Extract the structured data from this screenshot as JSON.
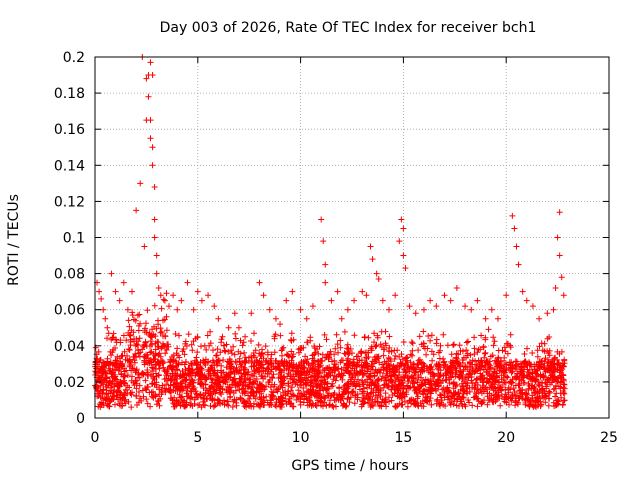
{
  "chart_data": {
    "type": "scatter",
    "title": "Day 003 of 2026, Rate Of TEC Index for receiver bch1",
    "xlabel": "GPS time / hours",
    "ylabel": "ROTI / TECUs",
    "xlim": [
      0,
      25
    ],
    "ylim": [
      0,
      0.2
    ],
    "x_ticks": [
      "0",
      "5",
      "10",
      "15",
      "20",
      "25"
    ],
    "y_ticks": [
      "0",
      "0.02",
      "0.04",
      "0.06",
      "0.08",
      "0.1",
      "0.12",
      "0.14",
      "0.16",
      "0.18",
      "0.2"
    ],
    "grid": true,
    "marker": "+",
    "color": "#ff0000",
    "series": [
      {
        "x": [
          0.1,
          0.2,
          0.3,
          0.4,
          0.5,
          0.6,
          0.8,
          1.0,
          1.2,
          1.4,
          1.6,
          1.8,
          2.0,
          2.2,
          2.3,
          2.4,
          2.5,
          2.5,
          2.6,
          2.6,
          2.7,
          2.7,
          2.7,
          2.8,
          2.8,
          2.8,
          2.9,
          2.9,
          2.9,
          3.0,
          3.0,
          3.1,
          3.2,
          3.4,
          3.6,
          3.8,
          4.0,
          4.2,
          4.5,
          4.8,
          5.0,
          5.2,
          5.5,
          5.8,
          6.0,
          6.2,
          6.5,
          6.8,
          7.0,
          7.3,
          7.6,
          8.0,
          8.2,
          8.5,
          8.8,
          9.0,
          9.3,
          9.6,
          10.0,
          10.3,
          10.6,
          11.0,
          11.1,
          11.2,
          11.2,
          11.5,
          11.8,
          12.0,
          12.3,
          12.6,
          13.0,
          13.2,
          13.4,
          13.5,
          13.7,
          13.8,
          14.0,
          14.3,
          14.6,
          14.8,
          14.9,
          15.0,
          15.0,
          15.1,
          15.3,
          15.6,
          16.0,
          16.3,
          16.6,
          17.0,
          17.3,
          17.6,
          18.0,
          18.3,
          18.6,
          19.0,
          19.3,
          19.6,
          20.0,
          20.3,
          20.4,
          20.5,
          20.6,
          20.8,
          21.0,
          21.3,
          21.6,
          22.0,
          22.3,
          22.4,
          22.5,
          22.6,
          22.6,
          22.7,
          22.8
        ],
        "y": [
          0.075,
          0.07,
          0.066,
          0.06,
          0.055,
          0.05,
          0.08,
          0.07,
          0.065,
          0.075,
          0.06,
          0.07,
          0.115,
          0.13,
          0.2,
          0.095,
          0.165,
          0.188,
          0.19,
          0.178,
          0.197,
          0.165,
          0.155,
          0.19,
          0.15,
          0.14,
          0.128,
          0.11,
          0.1,
          0.09,
          0.08,
          0.072,
          0.068,
          0.065,
          0.062,
          0.068,
          0.06,
          0.065,
          0.075,
          0.06,
          0.07,
          0.065,
          0.068,
          0.062,
          0.055,
          0.045,
          0.05,
          0.058,
          0.05,
          0.045,
          0.058,
          0.075,
          0.068,
          0.06,
          0.055,
          0.052,
          0.065,
          0.07,
          0.06,
          0.055,
          0.062,
          0.11,
          0.098,
          0.085,
          0.075,
          0.065,
          0.07,
          0.055,
          0.06,
          0.065,
          0.07,
          0.068,
          0.095,
          0.088,
          0.08,
          0.077,
          0.065,
          0.06,
          0.068,
          0.098,
          0.11,
          0.105,
          0.09,
          0.083,
          0.062,
          0.058,
          0.06,
          0.065,
          0.062,
          0.068,
          0.065,
          0.072,
          0.062,
          0.06,
          0.065,
          0.055,
          0.06,
          0.055,
          0.068,
          0.112,
          0.105,
          0.095,
          0.085,
          0.07,
          0.065,
          0.062,
          0.055,
          0.058,
          0.06,
          0.072,
          0.1,
          0.114,
          0.09,
          0.078,
          0.068
        ]
      }
    ]
  }
}
